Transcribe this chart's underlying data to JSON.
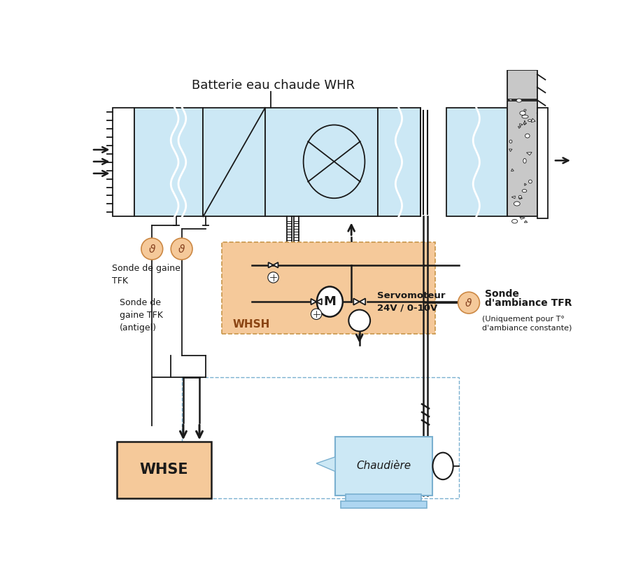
{
  "bg_color": "#ffffff",
  "blue_fill": "#cce8f5",
  "orange_fill": "#f5c99a",
  "gray_fill": "#c8c8c8",
  "dark": "#1a1a1a",
  "blue_edge": "#7ab0d0",
  "title": "Batterie eau chaude WHR",
  "label_sonde1": "Sonde de gaine\nTFK",
  "label_sonde2": "Sonde de\ngaine TFK\n(antigel)",
  "label_whsh": "WHSH",
  "label_whse": "WHSE",
  "label_servo": "Servomoteur\n24V / 0-10V",
  "label_sonde_amb1": "Sonde",
  "label_sonde_amb2": "d'ambiance TFR",
  "label_sonde_amb3": "(Uniquement pour T°",
  "label_sonde_amb4": "d'ambiance constante)",
  "label_chaudiere": "Chaudière"
}
